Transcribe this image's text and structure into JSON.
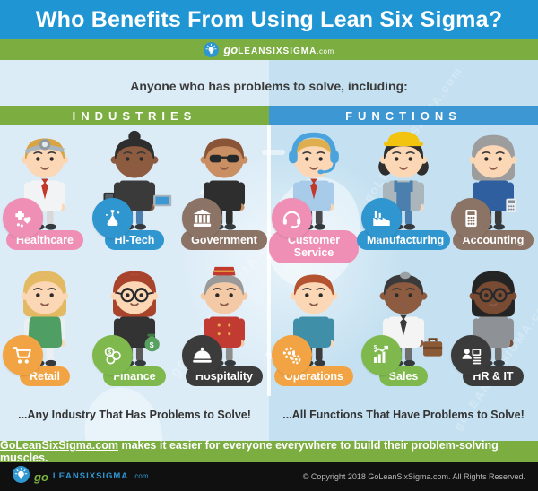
{
  "title": "Who Benefits From Using Lean Six Sigma?",
  "logo": {
    "go": "go",
    "main": "LEANSIXSIGMA",
    "tld": ".com"
  },
  "subtitle": "Anyone who has problems to solve, including:",
  "watermark_text": "goLEANSIXSIGMA.com",
  "colors": {
    "header_bg": "#1f96d3",
    "band_green": "#7bad41",
    "functions_blue": "#3d97d3",
    "left_bg": "#dcecf7",
    "right_bg": "#c5e1f1",
    "footer_bg": "#101010",
    "logo_blue": "#2f96d0",
    "logo_green": "#7bb342"
  },
  "columns": [
    {
      "id": "industries",
      "header": "INDUSTRIES",
      "header_color": "#7bad41",
      "tagline": "...Any Industry That Has Problems to Solve!",
      "cells": [
        {
          "label": "Healthcare",
          "color": "#ef8fb5",
          "icon": "medical",
          "avatar": {
            "skin": "#fcd7b6",
            "hair": "#d9a441",
            "style": "short",
            "top": "#f2f3f4",
            "bottom": "#d8d8d8",
            "acc": "headmirror",
            "tie": "#c0392b"
          }
        },
        {
          "label": "Hi-Tech",
          "color": "#2f96d0",
          "icon": "lab",
          "avatar": {
            "skin": "#8d5b3f",
            "hair": "#2e2e2e",
            "style": "bun",
            "top": "#3a3a3a",
            "bottom": "#4a7fae",
            "props": [
              "tablet",
              "laptop"
            ]
          }
        },
        {
          "label": "Government",
          "color": "#8b7365",
          "icon": "bank",
          "avatar": {
            "skin": "#c98f63",
            "hair": "#8a5437",
            "style": "short",
            "top": "#2e2e2e",
            "bottom": "#2e2e2e",
            "acc": "sunglasses"
          }
        },
        {
          "label": "Retail",
          "color": "#f2a444",
          "icon": "cart",
          "avatar": {
            "skin": "#fcd7b6",
            "hair": "#e3b963",
            "style": "bob",
            "top": "#4f9e63",
            "arms": "#eceff1",
            "bottom": "#eceff1"
          }
        },
        {
          "label": "Finance",
          "color": "#7fb94e",
          "icon": "coins",
          "avatar": {
            "skin": "#fcd7b6",
            "hair": "#a8432c",
            "style": "bob",
            "top": "#333333",
            "bottom": "#5a5a5a",
            "acc": "glasses",
            "props": [
              "moneybag"
            ]
          }
        },
        {
          "label": "Hospitality",
          "color": "#3b3b3b",
          "icon": "cloche",
          "avatar": {
            "skin": "#f3c9a6",
            "hair": "#9a9a9a",
            "style": "short",
            "top": "#c23b33",
            "bottom": "#8d8d8d",
            "acc": "pillbox",
            "buttons": true
          }
        }
      ]
    },
    {
      "id": "functions",
      "header": "FUNCTIONS",
      "header_color": "#3d97d3",
      "tagline": "...All Functions That Have Problems to Solve!",
      "cells": [
        {
          "label": "Customer Service",
          "color": "#ef8fb5",
          "icon": "headset",
          "avatar": {
            "skin": "#fcd7b6",
            "hair": "#dfae4e",
            "style": "short",
            "top": "#a7cbe8",
            "bottom": "#4a4a4a",
            "acc": "headset",
            "tie": "#c0392b"
          }
        },
        {
          "label": "Manufacturing",
          "color": "#2f96d0",
          "icon": "factory",
          "avatar": {
            "skin": "#fcd7b6",
            "hair": "#2e2e2e",
            "style": "side",
            "top": "#aab6bc",
            "bottom": "#4a7fae",
            "acc": "hardhat",
            "overalls": "#4a7fae"
          }
        },
        {
          "label": "Accounting",
          "color": "#8b7365",
          "icon": "calculator",
          "avatar": {
            "skin": "#fcd7b6",
            "hair": "#9d9d9d",
            "style": "bob",
            "top": "#2f5f9e",
            "bottom": "#3a3a3a",
            "props": [
              "calculator"
            ]
          }
        },
        {
          "label": "Operations",
          "color": "#f2a444",
          "icon": "gears",
          "avatar": {
            "skin": "#fcd7b6",
            "hair": "#b35330",
            "style": "short",
            "top": "#3f8fa8",
            "bottom": "#3c3c3c"
          }
        },
        {
          "label": "Sales",
          "color": "#7fb94e",
          "icon": "chart",
          "avatar": {
            "skin": "#8d5b3f",
            "hair": "#3a3a3a",
            "style": "short",
            "top": "#f4f4f4",
            "bottom": "#6e6e6e",
            "tie": "#3a3a3a",
            "grayPatch": true,
            "props": [
              "briefcase"
            ]
          }
        },
        {
          "label": "HR & IT",
          "color": "#3b3b3b",
          "icon": "hrit",
          "avatar": {
            "skin": "#7a4b33",
            "hair": "#242424",
            "style": "bob",
            "top": "#8e9296",
            "bottom": "#6f6f6f",
            "acc": "glasses"
          }
        }
      ]
    }
  ],
  "message": {
    "link": "GoLeanSixSigma.com",
    "rest": " makes it easier for everyone everywhere to build their problem-solving muscles."
  },
  "footer": {
    "copyright": "© Copyright 2018 GoLeanSixSigma.com. All Rights Reserved."
  }
}
